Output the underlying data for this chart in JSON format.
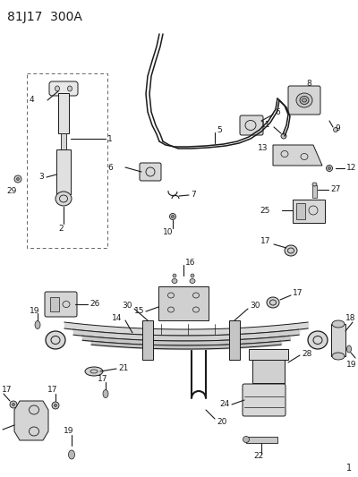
{
  "title": "81J17  300A",
  "bg_color": "#ffffff",
  "line_color": "#1a1a1a",
  "title_fontsize": 10,
  "fig_width": 4.0,
  "fig_height": 5.33,
  "dpi": 100
}
